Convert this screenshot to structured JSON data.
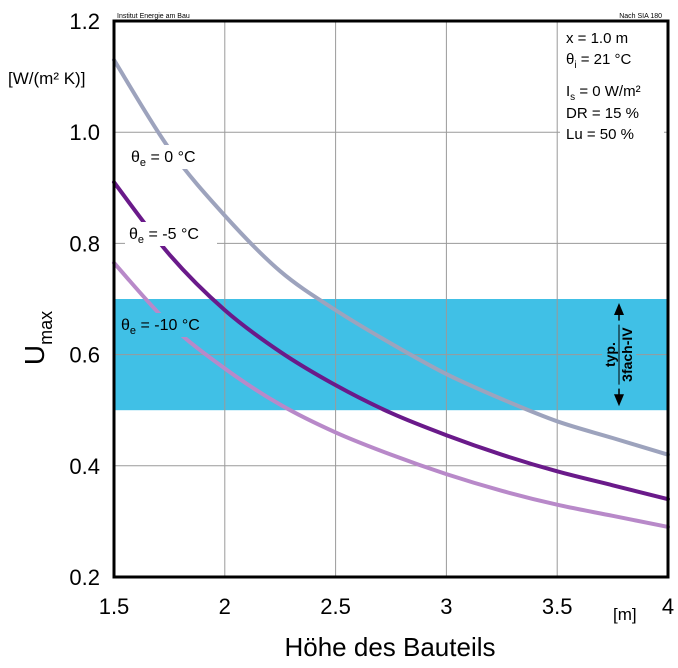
{
  "chart_data": {
    "type": "line",
    "title": "",
    "header_left": "Institut Energie am Bau",
    "header_right": "Nach SIA 180",
    "xlabel": "Höhe des Bauteils",
    "x_unit": "[m]",
    "ylabel_main": "U",
    "ylabel_sub": "max",
    "y_unit": "[W/(m² K)]",
    "xlim": [
      1.5,
      4
    ],
    "ylim": [
      0.2,
      1.2
    ],
    "xticks": [
      1.5,
      2,
      2.5,
      3,
      3.5,
      4
    ],
    "xtick_labels": [
      "1.5",
      "2",
      "2.5",
      "3",
      "3.5",
      "4"
    ],
    "yticks": [
      0.2,
      0.4,
      0.6,
      0.8,
      1.0,
      1.2
    ],
    "ytick_labels": [
      "0.2",
      "0.4",
      "0.6",
      "0.8",
      "1.0",
      "1.2"
    ],
    "grid": true,
    "band": {
      "y_from": 0.5,
      "y_to": 0.7,
      "color": "#40c0e6",
      "label_line1": "typ.",
      "label_line2": "3fach-IV"
    },
    "series": [
      {
        "name": "θe = 0 °C",
        "label_main": "θ",
        "label_sub": "e",
        "label_rest": " = 0 °C",
        "color": "#9da3bd",
        "x": [
          1.5,
          1.75,
          2.0,
          2.25,
          2.5,
          2.75,
          3.0,
          3.25,
          3.5,
          3.75,
          4.0
        ],
        "values": [
          1.13,
          0.97,
          0.85,
          0.75,
          0.68,
          0.62,
          0.565,
          0.52,
          0.48,
          0.45,
          0.42
        ]
      },
      {
        "name": "θe = -5 °C",
        "label_main": "θ",
        "label_sub": "e",
        "label_rest": " = -5 °C",
        "color": "#6a1a8a",
        "x": [
          1.5,
          1.75,
          2.0,
          2.25,
          2.5,
          2.75,
          3.0,
          3.25,
          3.5,
          3.75,
          4.0
        ],
        "values": [
          0.91,
          0.78,
          0.68,
          0.605,
          0.545,
          0.495,
          0.455,
          0.42,
          0.39,
          0.365,
          0.34
        ]
      },
      {
        "name": "θe = -10 °C",
        "label_main": "θ",
        "label_sub": "e",
        "label_rest": " = -10 °C",
        "color": "#b889c9",
        "x": [
          1.5,
          1.75,
          2.0,
          2.25,
          2.5,
          2.75,
          3.0,
          3.25,
          3.5,
          3.75,
          4.0
        ],
        "values": [
          0.765,
          0.655,
          0.575,
          0.51,
          0.46,
          0.42,
          0.385,
          0.355,
          0.33,
          0.31,
          0.29
        ]
      }
    ],
    "parameters": [
      {
        "main": "x = 1.0 m",
        "sub": "",
        "rest": ""
      },
      {
        "main": "θ",
        "sub": "i",
        "rest": " = 21 °C"
      },
      {
        "main": "I",
        "sub": "s",
        "rest": " = 0 W/m²"
      },
      {
        "main": "DR = 15 %",
        "sub": "",
        "rest": ""
      },
      {
        "main": "Lu = 50 %",
        "sub": "",
        "rest": ""
      }
    ]
  }
}
